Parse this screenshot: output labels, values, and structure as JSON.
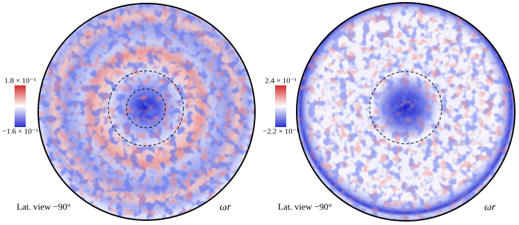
{
  "panels": [
    {
      "colorbar_max": "1.8 × 10⁻¹",
      "colorbar_min": "−1.6 × 10⁻¹",
      "view_label": "Lat. view −90°",
      "field_label": "ωr"
    },
    {
      "colorbar_max": "2.4 × 10⁻¹",
      "colorbar_min": "−2.2 × 10⁻¹",
      "view_label": "Lat. view −90°",
      "field_label": "ωr"
    }
  ]
}
